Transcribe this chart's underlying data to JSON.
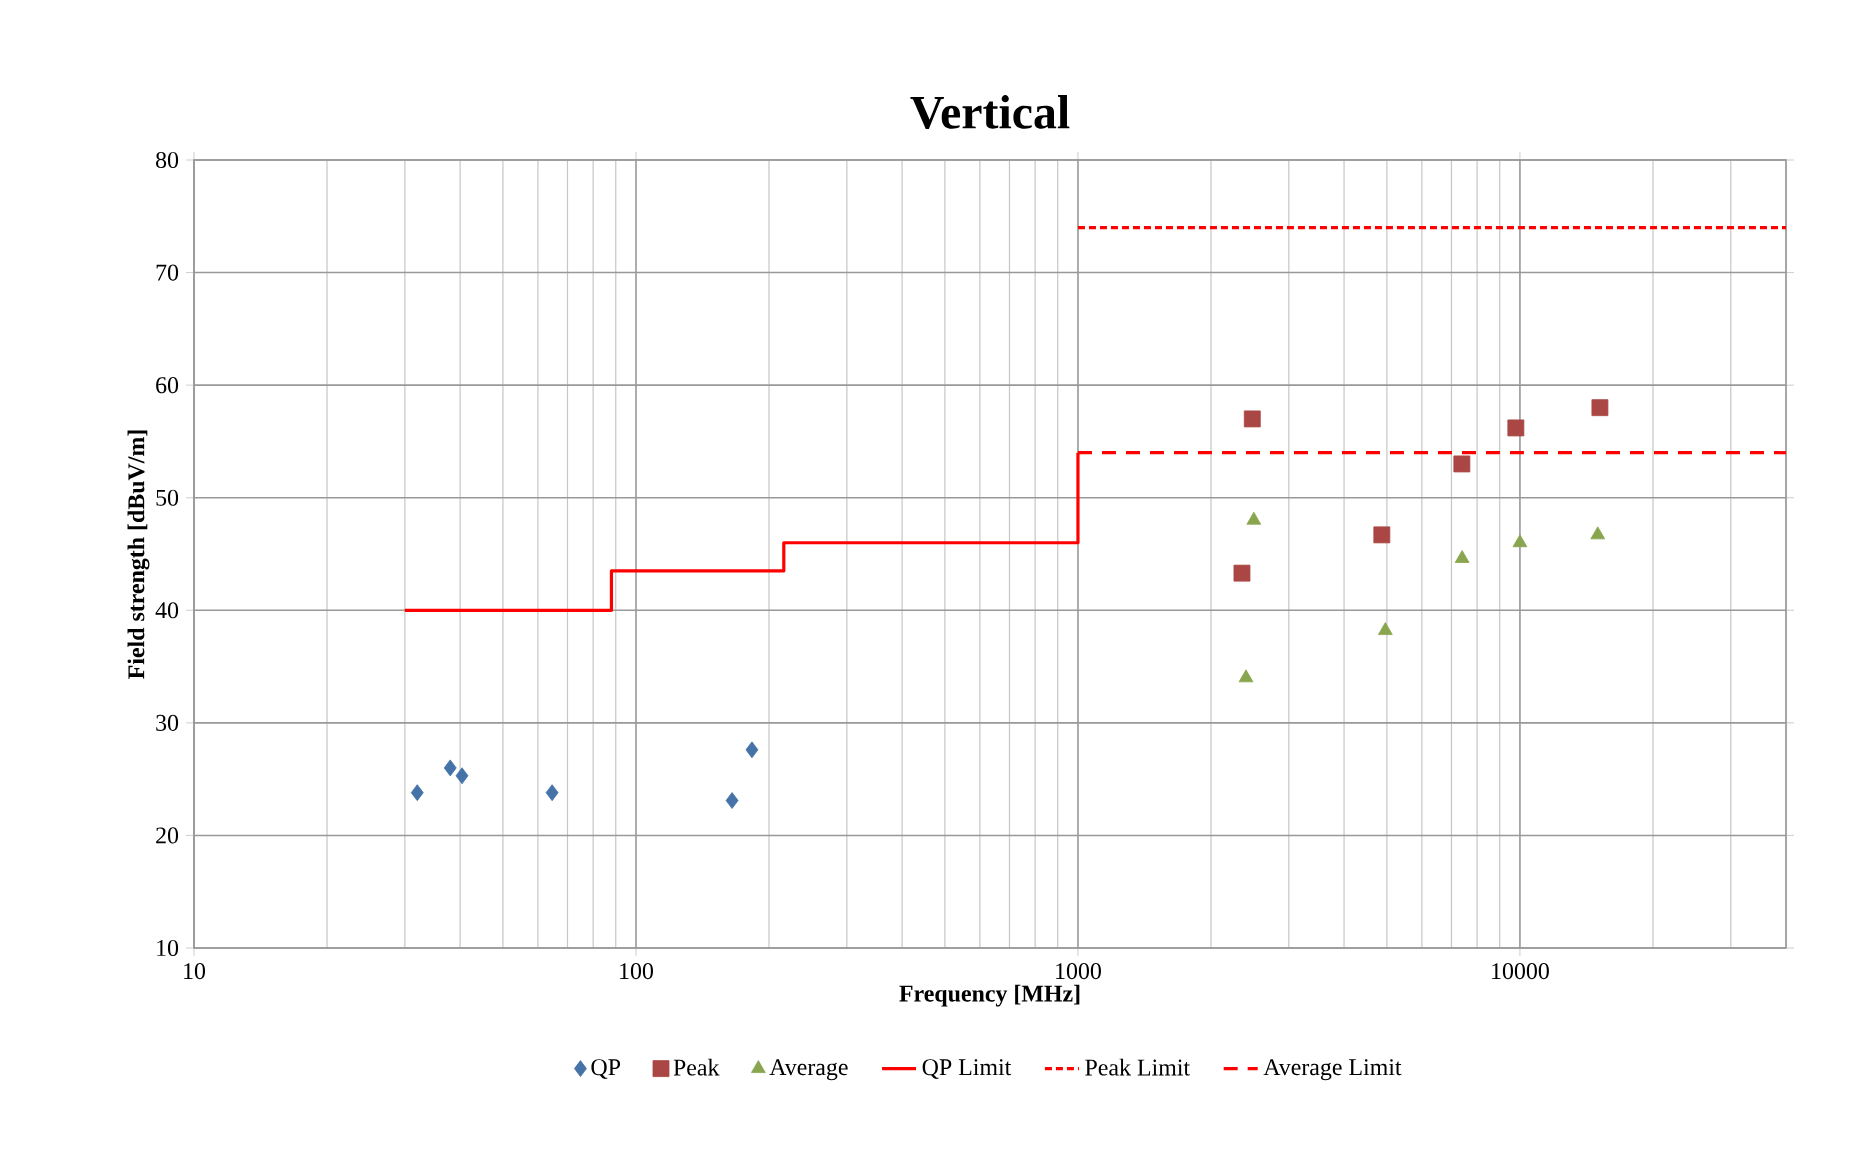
{
  "chart_data": {
    "type": "scatter",
    "title": "Vertical",
    "xlabel": "Frequency  [MHz]",
    "ylabel": "Field strength [dBuV/m]",
    "log": "x",
    "grid": true,
    "legend": "bottom",
    "xlim": [
      10,
      40000
    ],
    "xticks": [
      10,
      100,
      1000,
      10000
    ],
    "ylim": [
      10,
      80
    ],
    "yticks": [
      10,
      20,
      30,
      40,
      50,
      60,
      70,
      80
    ],
    "series": [
      {
        "name": "QP",
        "marker": "diamond",
        "color": "#4572a7",
        "x": [
          32,
          38,
          40.4,
          64.6,
          165,
          183
        ],
        "values": [
          23.8,
          26,
          25.3,
          23.8,
          23.1,
          27.6
        ]
      },
      {
        "name": "Peak",
        "marker": "square",
        "color": "#aa4643",
        "x": [
          2350,
          2480,
          4870,
          7390,
          9790,
          15170
        ],
        "values": [
          43.3,
          57,
          46.7,
          53,
          56.2,
          58
        ]
      },
      {
        "name": "Average",
        "marker": "triangle",
        "color": "#89a54e",
        "x": [
          2400,
          2500,
          4960,
          7400,
          10000,
          15000
        ],
        "values": [
          34,
          48,
          38.2,
          44.6,
          46,
          46.7
        ]
      },
      {
        "name": "QP Limit",
        "type": "line",
        "marker": "none",
        "line_style": "solid",
        "color": "#ff0000",
        "x": [
          30,
          88,
          88,
          216,
          216,
          1000,
          1000
        ],
        "values": [
          40,
          40,
          43.5,
          43.5,
          46,
          46,
          54
        ]
      },
      {
        "name": "Peak Limit",
        "type": "line",
        "marker": "none",
        "line_style": "dotted",
        "color": "#ff0000",
        "x": [
          1000,
          40000
        ],
        "values": [
          74,
          74
        ]
      },
      {
        "name": "Average Limit",
        "type": "line",
        "marker": "none",
        "line_style": "dashed",
        "color": "#ff0000",
        "x": [
          1000,
          40000
        ],
        "values": [
          54,
          54
        ]
      }
    ]
  }
}
